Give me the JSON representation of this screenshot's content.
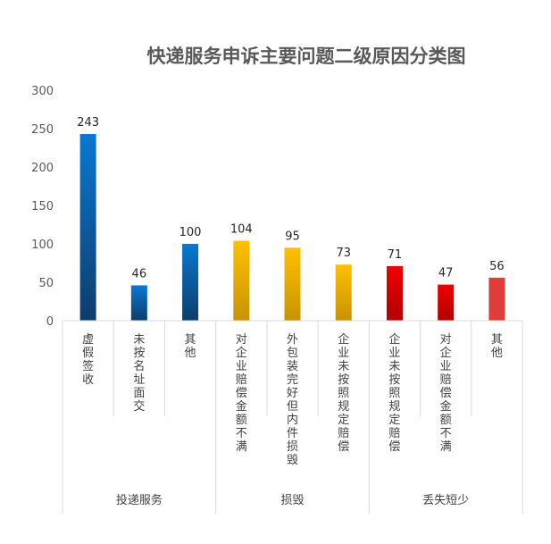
{
  "chart_data": {
    "type": "bar",
    "title": "快递服务申诉主要问题二级原因分类图",
    "xlabel": "",
    "ylabel": "",
    "ylim": [
      0,
      300
    ],
    "yticks": [
      "0",
      "50",
      "100",
      "150",
      "200",
      "250",
      "300"
    ],
    "grid": false,
    "legend": "none",
    "categories": [
      "虚假签收",
      "未按名址面交",
      "其他",
      "对企业赔偿金额不满",
      "外包装完好但内件损毁",
      "企业未按照规定赔偿",
      "企业未按照规定赔偿",
      "对企业赔偿金额不满",
      "其他"
    ],
    "values": [
      243,
      46,
      100,
      104,
      95,
      73,
      71,
      47,
      56
    ],
    "groups": [
      {
        "label": "投递服务",
        "count": 3,
        "color_top": "#0a78d2",
        "color_bottom": "#0d3d6b"
      },
      {
        "label": "损毁",
        "count": 3,
        "color_top": "#ffc000",
        "color_bottom": "#c79400"
      },
      {
        "label": "丢失短少",
        "count": 3,
        "color_top": "#f00000",
        "color_bottom": "#b00000"
      }
    ],
    "last_bar_color": "#e03c3c"
  }
}
